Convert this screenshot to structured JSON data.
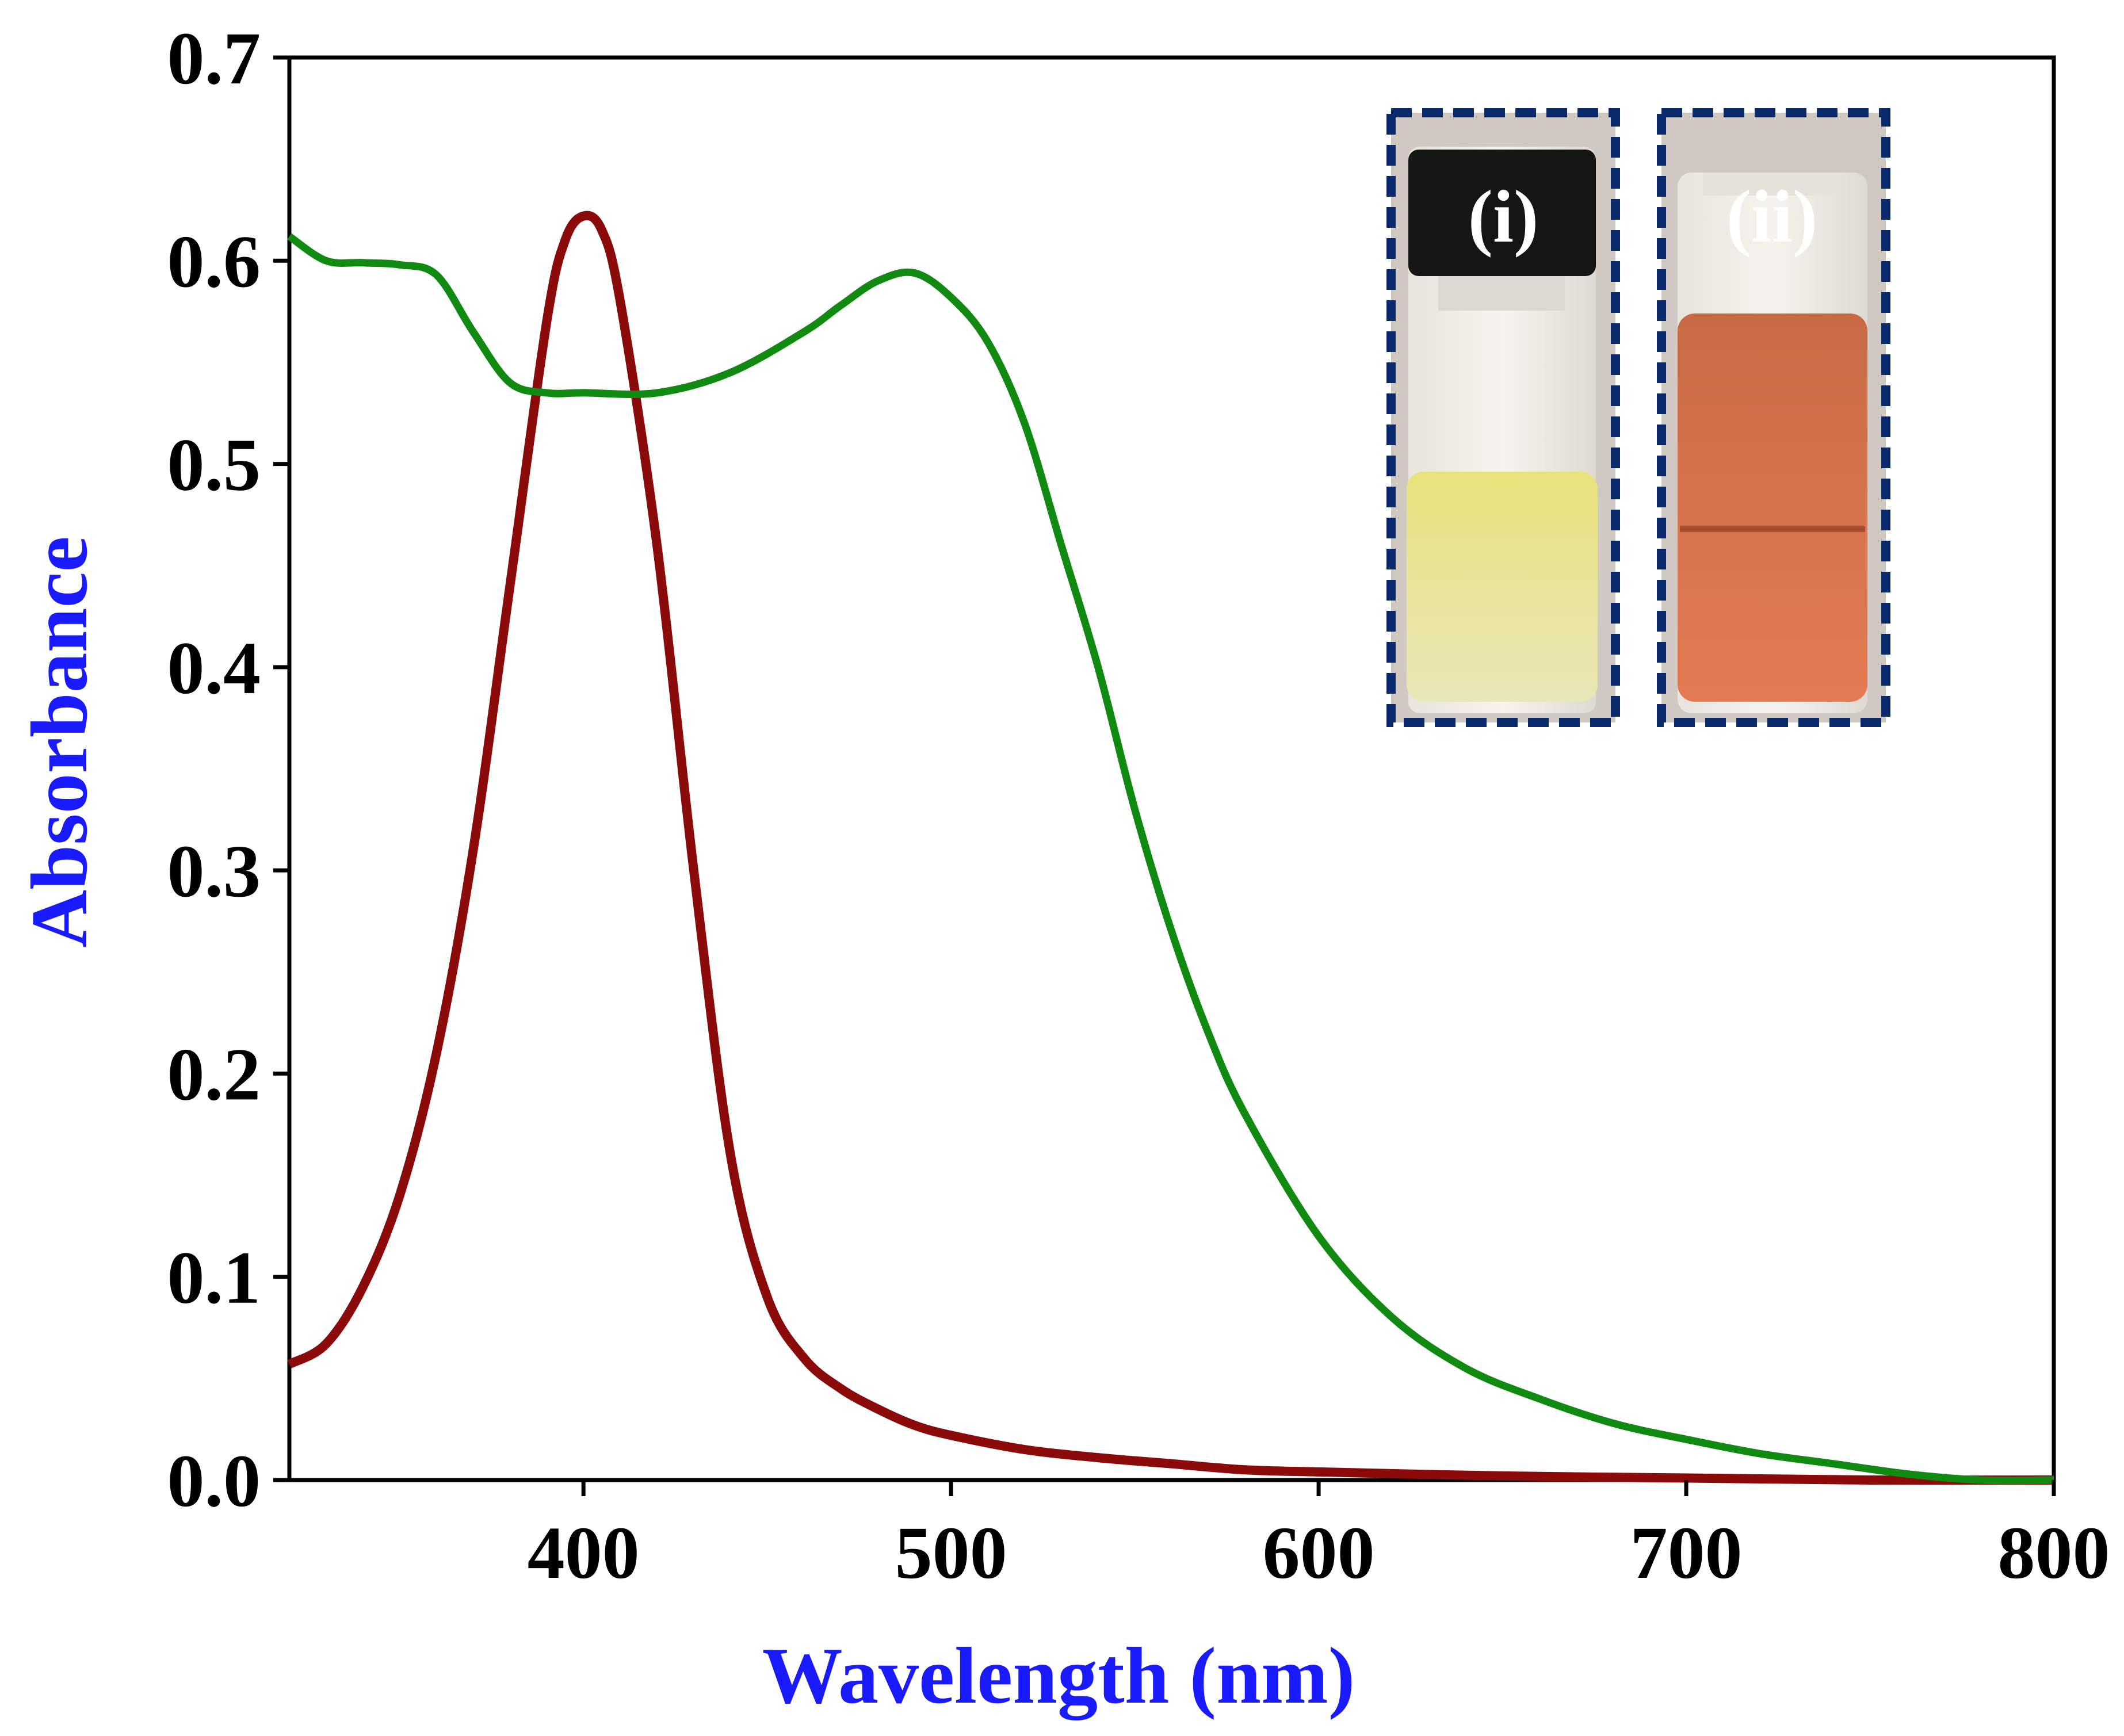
{
  "colors": {
    "green_series": "#118a11",
    "red_series": "#8b0a0a",
    "axis_title": "#1a1aff",
    "inset_border": "#0b2a6b"
  },
  "chart_data": {
    "type": "line",
    "title": "",
    "xlabel": "Wavelength (nm)",
    "ylabel": "Absorbance",
    "xlim": [
      320,
      800
    ],
    "ylim": [
      0,
      0.7
    ],
    "xticks": [
      400,
      500,
      600,
      700,
      800
    ],
    "xtick_labels": [
      "400",
      "500",
      "600",
      "700",
      "800"
    ],
    "yticks": [
      0.0,
      0.1,
      0.2,
      0.3,
      0.4,
      0.5,
      0.6,
      0.7
    ],
    "ytick_labels": [
      "0.0",
      "0.1",
      "0.2",
      "0.3",
      "0.4",
      "0.5",
      "0.6",
      "0.7"
    ],
    "grid": false,
    "series": [
      {
        "name": "red",
        "color_key": "red_series",
        "x": [
          320,
          330,
          340,
          350,
          360,
          370,
          380,
          390,
          395,
          400,
          405,
          410,
          420,
          430,
          440,
          450,
          460,
          470,
          480,
          490,
          500,
          520,
          540,
          560,
          580,
          600,
          650,
          700,
          750,
          800
        ],
        "y": [
          0.057,
          0.067,
          0.095,
          0.14,
          0.21,
          0.31,
          0.44,
          0.57,
          0.61,
          0.622,
          0.615,
          0.58,
          0.46,
          0.3,
          0.16,
          0.09,
          0.06,
          0.045,
          0.035,
          0.027,
          0.022,
          0.015,
          0.011,
          0.008,
          0.005,
          0.004,
          0.002,
          0.001,
          0.0,
          0.0
        ]
      },
      {
        "name": "green",
        "color_key": "green_series",
        "x": [
          320,
          330,
          340,
          350,
          360,
          370,
          380,
          390,
          400,
          420,
          440,
          460,
          470,
          480,
          490,
          500,
          510,
          520,
          530,
          540,
          550,
          560,
          570,
          580,
          600,
          620,
          640,
          660,
          680,
          700,
          720,
          740,
          760,
          780,
          800
        ],
        "y": [
          0.612,
          0.6,
          0.599,
          0.598,
          0.593,
          0.565,
          0.54,
          0.535,
          0.535,
          0.535,
          0.545,
          0.565,
          0.578,
          0.59,
          0.594,
          0.582,
          0.56,
          0.52,
          0.46,
          0.4,
          0.33,
          0.27,
          0.22,
          0.18,
          0.12,
          0.08,
          0.055,
          0.04,
          0.028,
          0.02,
          0.013,
          0.008,
          0.003,
          0.0,
          0.0
        ]
      }
    ],
    "inset_labels": [
      "(i)",
      "(ii)"
    ]
  }
}
